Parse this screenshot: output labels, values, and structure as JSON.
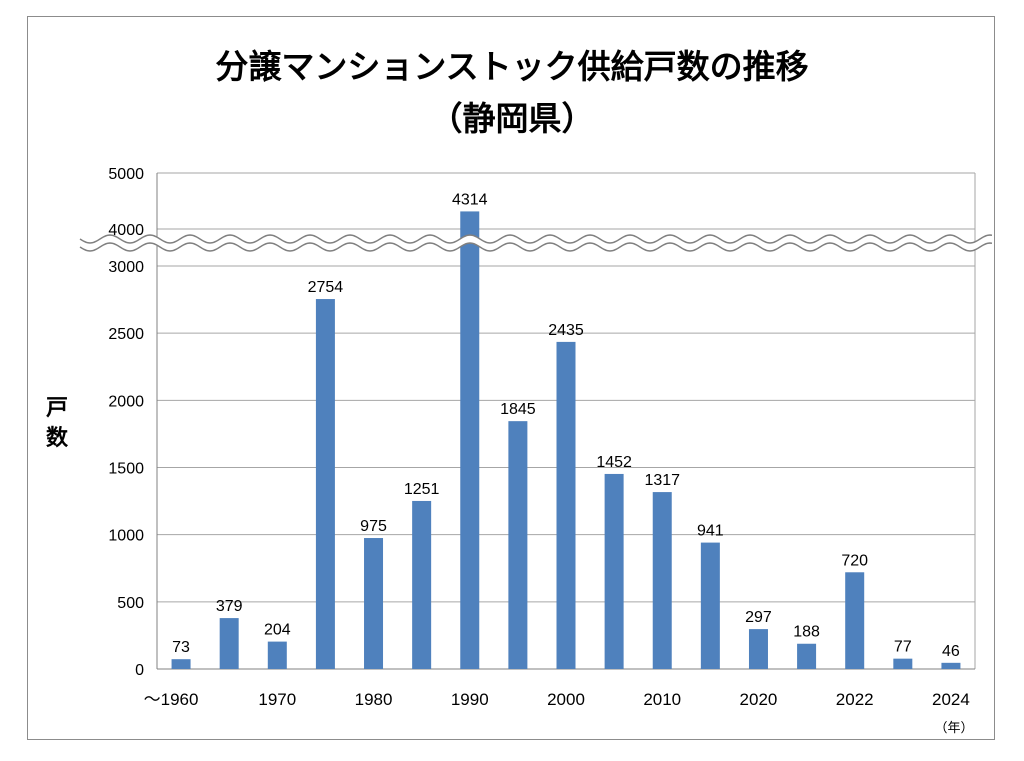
{
  "chart_data": {
    "type": "bar",
    "title": "分譲マンションストック供給戸数の推移",
    "subtitle": "（静岡県）",
    "ylabel": "戸数",
    "x_unit": "（年）",
    "y_ticks_lower": [
      "0",
      "500",
      "1000",
      "1500",
      "2000",
      "2500",
      "3000"
    ],
    "y_ticks_upper": [
      "4000",
      "5000"
    ],
    "ylim": [
      0,
      5000
    ],
    "axis_break": [
      3000,
      4000
    ],
    "x_tick_labels": [
      "～1960",
      "1970",
      "1980",
      "1990",
      "2000",
      "2010",
      "2020",
      "2022",
      "2024"
    ],
    "bar_color": "#4f81bd",
    "values": [
      73,
      379,
      204,
      2754,
      975,
      1251,
      4314,
      1845,
      2435,
      1452,
      1317,
      941,
      297,
      188,
      720,
      77,
      46
    ],
    "value_labels": [
      "73",
      "379",
      "204",
      "2754",
      "975",
      "1251",
      "4314",
      "1845",
      "2435",
      "1452",
      "1317",
      "941",
      "297",
      "188",
      "720",
      "77",
      "46"
    ]
  }
}
